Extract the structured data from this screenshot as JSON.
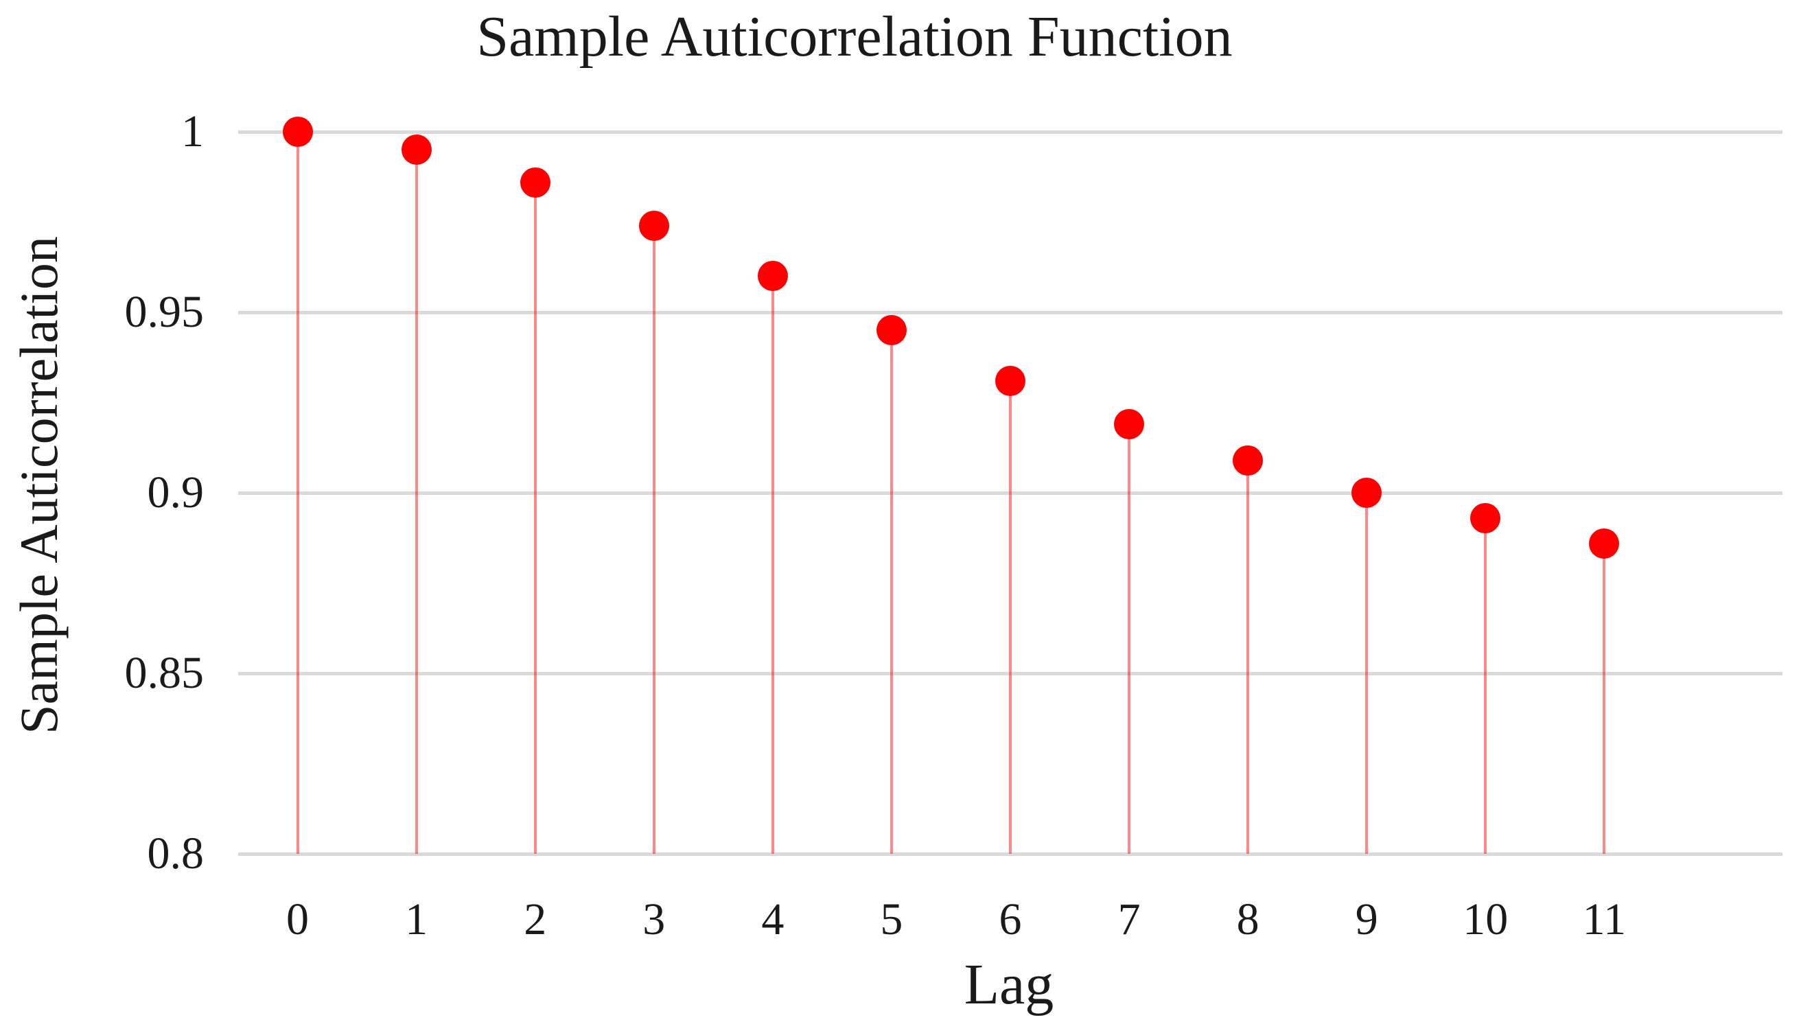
{
  "title": "Sample Auticorrelation Function",
  "x_axis": {
    "label": "Lag",
    "tick_labels": [
      "0",
      "1",
      "2",
      "3",
      "4",
      "5",
      "6",
      "7",
      "8",
      "9",
      "10",
      "11"
    ]
  },
  "y_axis": {
    "label": "Sample Auticorrelation",
    "tick_labels": [
      "1",
      "0.95",
      "0.9",
      "0.85",
      "0.8"
    ],
    "tick_values": [
      1,
      0.95,
      0.9,
      0.85,
      0.8
    ]
  },
  "chart_data": {
    "type": "stem",
    "title": "Sample Auticorrelation Function",
    "xlabel": "Lag",
    "ylabel": "Sample Auticorrelation",
    "x": [
      0,
      1,
      2,
      3,
      4,
      5,
      6,
      7,
      8,
      9,
      10,
      11
    ],
    "values": [
      1.0,
      0.995,
      0.986,
      0.974,
      0.96,
      0.945,
      0.931,
      0.919,
      0.909,
      0.9,
      0.893,
      0.886
    ],
    "ylim": [
      0.8,
      1.0
    ],
    "y_gridlines": [
      1,
      0.95,
      0.9,
      0.85,
      0.8
    ],
    "grid": true,
    "legend": "none",
    "colors": {
      "marker": "#fe0000",
      "stem": "rgba(254,0,0,0.47)",
      "gridline": "#d9d9d9",
      "text": "#1a1a1a"
    }
  }
}
